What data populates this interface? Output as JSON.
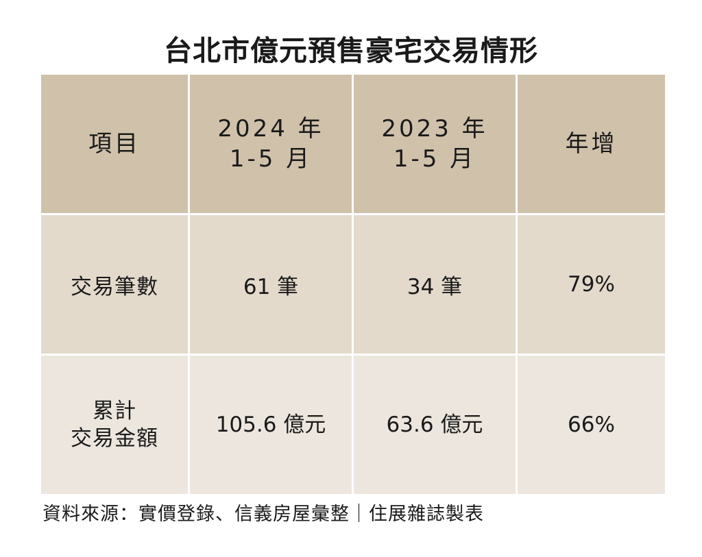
{
  "chart_data": {
    "type": "table",
    "title": "台北市億元預售豪宅交易情形",
    "columns": [
      "項目",
      "2024 年\n1-5 月",
      "2023 年\n1-5 月",
      "年增"
    ],
    "rows": [
      [
        "交易筆數",
        "61 筆",
        "34 筆",
        "79%"
      ],
      [
        "累計\n交易金額",
        "105.6 億元",
        "63.6 億元",
        "66%"
      ]
    ],
    "source": "資料來源：實價登錄、信義房屋彙整｜住展雜誌製表"
  },
  "colors": {
    "header_bg": "#d0c1ab",
    "row1_bg": "#e3dacc",
    "row2_bg": "#ece6de",
    "text": "#1a1a1a"
  }
}
